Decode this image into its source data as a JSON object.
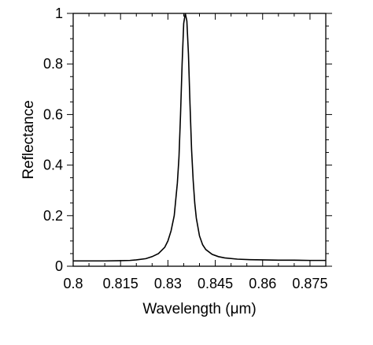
{
  "chart_data": {
    "type": "line",
    "title": "",
    "xlabel": "Wavelength (μm)",
    "ylabel": "Reflectance",
    "xlim": [
      0.8,
      0.88
    ],
    "ylim": [
      0,
      1
    ],
    "x_ticks": [
      "0.8",
      "0.815",
      "0.83",
      "0.845",
      "0.86",
      "0.875"
    ],
    "x_tick_values": [
      0.8,
      0.815,
      0.83,
      0.845,
      0.86,
      0.875
    ],
    "y_ticks": [
      "0",
      "0.2",
      "0.4",
      "0.6",
      "0.8",
      "1"
    ],
    "y_tick_values": [
      0,
      0.2,
      0.4,
      0.6,
      0.8,
      1
    ],
    "grid": false,
    "series": [
      {
        "x": [
          0.8,
          0.805,
          0.81,
          0.815,
          0.818,
          0.82,
          0.823,
          0.825,
          0.827,
          0.829,
          0.83,
          0.831,
          0.832,
          0.833,
          0.8335,
          0.834,
          0.8345,
          0.835,
          0.8355,
          0.836,
          0.8365,
          0.837,
          0.8375,
          0.838,
          0.8385,
          0.839,
          0.84,
          0.841,
          0.842,
          0.844,
          0.846,
          0.848,
          0.852,
          0.856,
          0.86,
          0.865,
          0.87,
          0.875,
          0.88
        ],
        "y": [
          0.021,
          0.021,
          0.021,
          0.022,
          0.023,
          0.025,
          0.03,
          0.038,
          0.05,
          0.075,
          0.1,
          0.14,
          0.2,
          0.33,
          0.43,
          0.6,
          0.8,
          0.96,
          1.0,
          0.97,
          0.84,
          0.64,
          0.46,
          0.34,
          0.25,
          0.19,
          0.12,
          0.085,
          0.066,
          0.047,
          0.038,
          0.033,
          0.028,
          0.026,
          0.025,
          0.024,
          0.024,
          0.023,
          0.023
        ]
      }
    ]
  }
}
